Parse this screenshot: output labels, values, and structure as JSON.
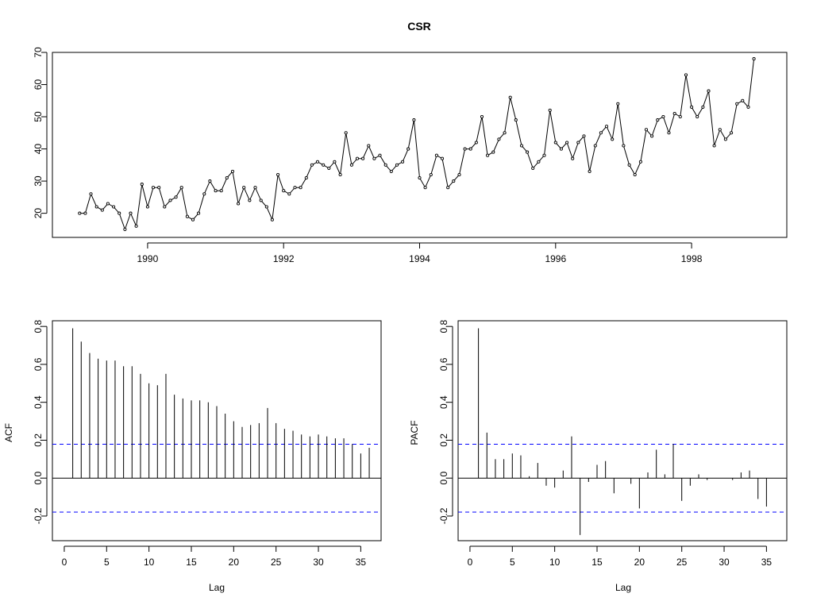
{
  "chart_data": [
    {
      "type": "line",
      "title": "CSR",
      "xlabel": "",
      "ylabel": "",
      "xlim": [
        1988.6,
        1999.4
      ],
      "ylim": [
        12.5,
        70
      ],
      "x_start": 1989,
      "x_step": 0.0833333,
      "x_ticks": [
        1990,
        1992,
        1994,
        1996,
        1998
      ],
      "y_ticks": [
        20,
        30,
        40,
        50,
        60,
        70
      ],
      "markers": true,
      "values": [
        20,
        20,
        26,
        22,
        21,
        23,
        22,
        20,
        15,
        20,
        16,
        29,
        22,
        28,
        28,
        22,
        24,
        25,
        28,
        19,
        18,
        20,
        26,
        30,
        27,
        27,
        31,
        33,
        23,
        28,
        24,
        28,
        24,
        22,
        18,
        32,
        27,
        26,
        28,
        28,
        31,
        35,
        36,
        35,
        34,
        36,
        32,
        45,
        35,
        37,
        37,
        41,
        37,
        38,
        35,
        33,
        35,
        36,
        40,
        49,
        31,
        28,
        32,
        38,
        37,
        28,
        30,
        32,
        40,
        40,
        42,
        50,
        38,
        39,
        43,
        45,
        56,
        49,
        41,
        39,
        34,
        36,
        38,
        52,
        42,
        40,
        42,
        37,
        42,
        44,
        33,
        41,
        45,
        47,
        43,
        54,
        41,
        35,
        32,
        36,
        46,
        44,
        49,
        50,
        45,
        51,
        50,
        63,
        53,
        50,
        53,
        58,
        41,
        46,
        43,
        45,
        54,
        55,
        53,
        68
      ]
    },
    {
      "type": "bar",
      "xlabel": "Lag",
      "ylabel": "ACF",
      "xlim": [
        -1.4,
        37.4
      ],
      "ylim": [
        -0.33,
        0.83
      ],
      "x_ticks": [
        0,
        5,
        10,
        15,
        20,
        25,
        30,
        35
      ],
      "y_ticks": [
        -0.2,
        0.0,
        0.2,
        0.4,
        0.6,
        0.8
      ],
      "confidence_bound": 0.179,
      "lags": [
        1,
        2,
        3,
        4,
        5,
        6,
        7,
        8,
        9,
        10,
        11,
        12,
        13,
        14,
        15,
        16,
        17,
        18,
        19,
        20,
        21,
        22,
        23,
        24,
        25,
        26,
        27,
        28,
        29,
        30,
        31,
        32,
        33,
        34,
        35,
        36
      ],
      "values": [
        0.79,
        0.72,
        0.66,
        0.63,
        0.62,
        0.62,
        0.59,
        0.59,
        0.55,
        0.5,
        0.49,
        0.55,
        0.44,
        0.42,
        0.41,
        0.41,
        0.4,
        0.38,
        0.34,
        0.3,
        0.27,
        0.28,
        0.29,
        0.37,
        0.29,
        0.26,
        0.25,
        0.23,
        0.22,
        0.23,
        0.22,
        0.21,
        0.21,
        0.18,
        0.13,
        0.16
      ]
    },
    {
      "type": "bar",
      "xlabel": "Lag",
      "ylabel": "PACF",
      "xlim": [
        -1.4,
        37.4
      ],
      "ylim": [
        -0.33,
        0.83
      ],
      "x_ticks": [
        0,
        5,
        10,
        15,
        20,
        25,
        30,
        35
      ],
      "y_ticks": [
        -0.2,
        0.0,
        0.2,
        0.4,
        0.6,
        0.8
      ],
      "confidence_bound": 0.179,
      "lags": [
        1,
        2,
        3,
        4,
        5,
        6,
        7,
        8,
        9,
        10,
        11,
        12,
        13,
        14,
        15,
        16,
        17,
        18,
        19,
        20,
        21,
        22,
        23,
        24,
        25,
        26,
        27,
        28,
        29,
        30,
        31,
        32,
        33,
        34,
        35,
        36
      ],
      "values": [
        0.79,
        0.24,
        0.1,
        0.1,
        0.13,
        0.12,
        0.01,
        0.08,
        -0.04,
        -0.05,
        0.04,
        0.22,
        -0.3,
        -0.02,
        0.07,
        0.09,
        -0.08,
        0.0,
        -0.03,
        -0.16,
        0.03,
        0.15,
        0.02,
        0.18,
        -0.12,
        -0.04,
        0.02,
        -0.01,
        0.0,
        0.0,
        -0.01,
        0.03,
        0.04,
        -0.11,
        -0.15,
        0.0
      ]
    }
  ],
  "colors": {
    "ink": "#000000",
    "confidence": "#0000ff"
  }
}
